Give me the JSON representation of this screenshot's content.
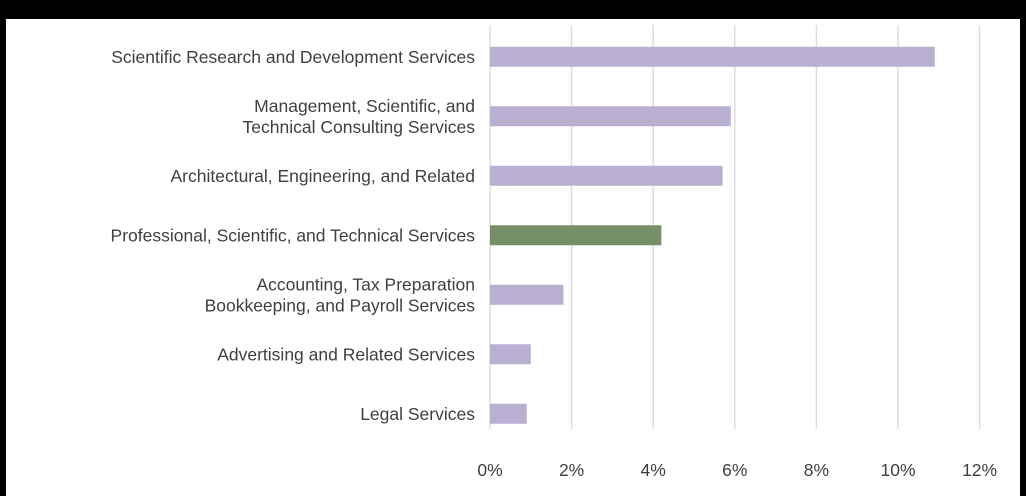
{
  "chart_data": {
    "type": "bar",
    "orientation": "horizontal",
    "categories": [
      [
        "Scientific Research and Development Services"
      ],
      [
        "Management, Scientific, and",
        "Technical Consulting Services"
      ],
      [
        "Architectural, Engineering, and Related"
      ],
      [
        "Professional, Scientific, and Technical Services"
      ],
      [
        "Accounting, Tax Preparation",
        "Bookkeeping, and Payroll Services"
      ],
      [
        "Advertising and Related Services"
      ],
      [
        "Legal Services"
      ]
    ],
    "values": [
      10.9,
      5.9,
      5.7,
      4.2,
      1.8,
      1.0,
      0.9
    ],
    "bar_colors": [
      "#b8afd1",
      "#b8afd1",
      "#b8afd1",
      "#758f66",
      "#b8afd1",
      "#b8afd1",
      "#b8afd1"
    ],
    "xlim": [
      0,
      12
    ],
    "xticks": [
      0,
      2,
      4,
      6,
      8,
      10,
      12
    ],
    "xtick_labels": [
      "0%",
      "2%",
      "4%",
      "6%",
      "8%",
      "10%",
      "12%"
    ],
    "grid": "vertical",
    "title": "",
    "xlabel": "",
    "ylabel": ""
  },
  "colors": {
    "bar": "#b8afd1",
    "highlight": "#758f66",
    "grid": "#d9d9d9",
    "text": "#404040",
    "frame": "#000000"
  }
}
